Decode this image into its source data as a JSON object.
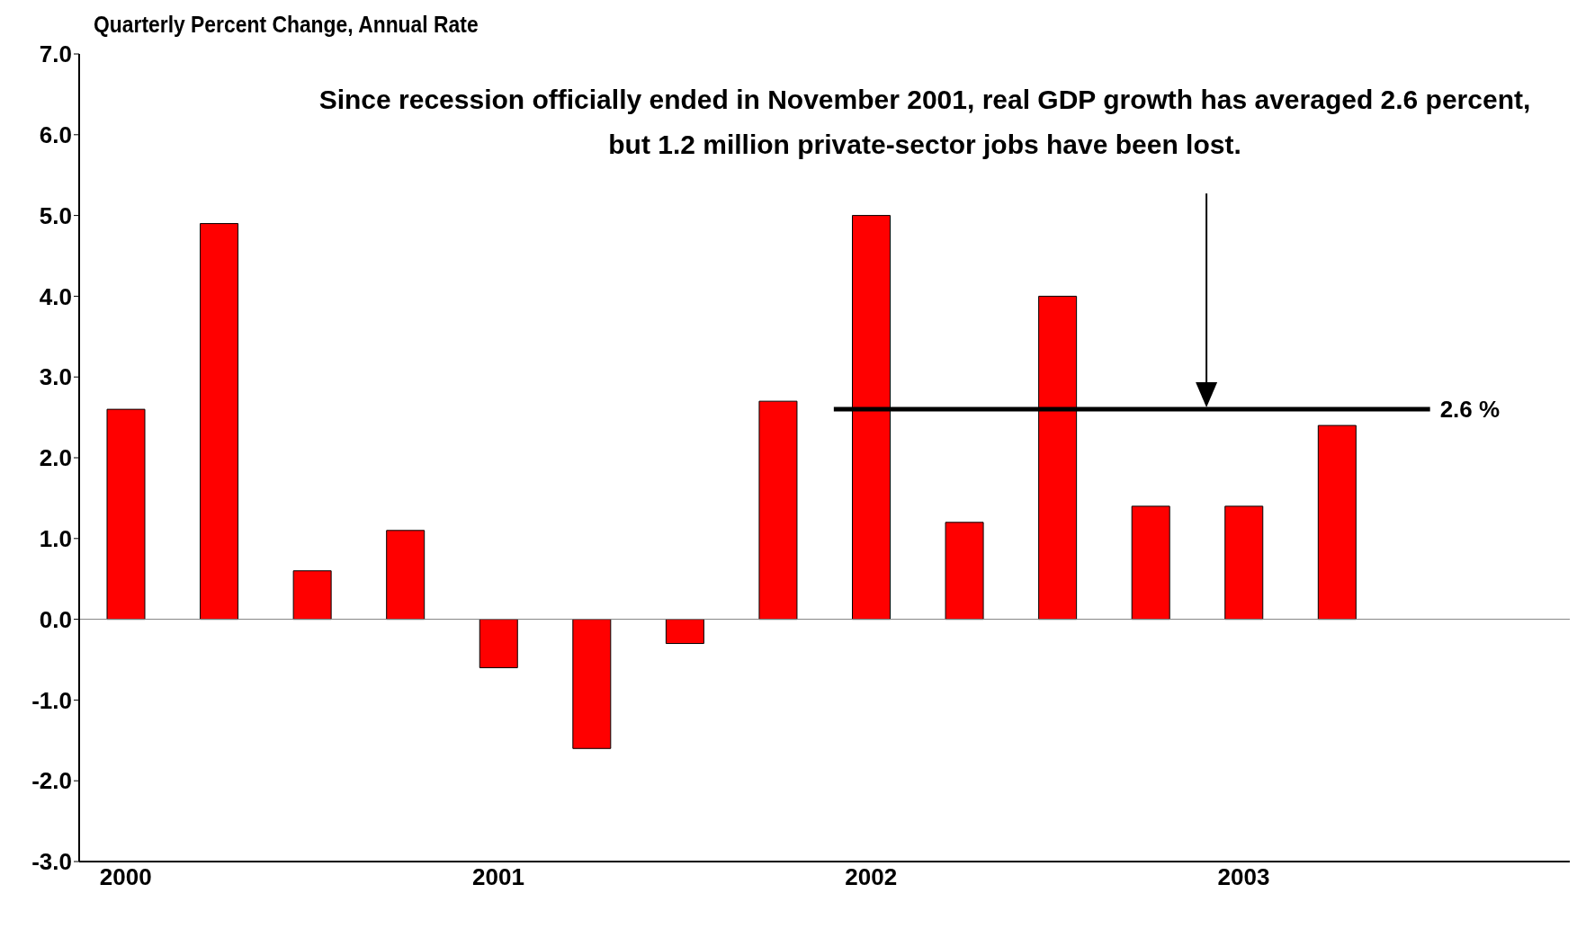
{
  "chart_data": {
    "type": "bar",
    "ylabel": "Quarterly Percent Change, Annual Rate",
    "annotations": [
      "Since recession officially ended in November 2001, real GDP growth has averaged 2.6 percent,",
      "but 1.2 million private-sector jobs have been lost."
    ],
    "categories": [
      "2000",
      null,
      null,
      null,
      "2001",
      null,
      null,
      null,
      "2002",
      null,
      null,
      null,
      "2003",
      null,
      null,
      null
    ],
    "values": [
      2.6,
      4.9,
      0.6,
      1.1,
      -0.6,
      -1.6,
      -0.3,
      2.7,
      5.0,
      1.2,
      4.0,
      1.4,
      1.4,
      2.4,
      null,
      null
    ],
    "color": "#ff0000",
    "ylim": [
      -3,
      7
    ],
    "yticks": [
      {
        "value": -3,
        "label": "-3.0"
      },
      {
        "value": -2,
        "label": "-2.0"
      },
      {
        "value": -1,
        "label": "-1.0"
      },
      {
        "value": 0,
        "label": "0.0"
      },
      {
        "value": 1,
        "label": "1.0"
      },
      {
        "value": 2,
        "label": "2.0"
      },
      {
        "value": 3,
        "label": "3.0"
      },
      {
        "value": 4,
        "label": "4.0"
      },
      {
        "value": 5,
        "label": "5.0"
      },
      {
        "value": 6,
        "label": "6.0"
      },
      {
        "value": 7,
        "label": "7.0"
      }
    ],
    "ref_lines": [
      {
        "axis": "y",
        "value": 0,
        "color": "#808080"
      },
      {
        "axis": "y",
        "value": 2.6,
        "label": "2.6 %",
        "color": "#000000"
      }
    ],
    "grid": false,
    "legend": false
  }
}
